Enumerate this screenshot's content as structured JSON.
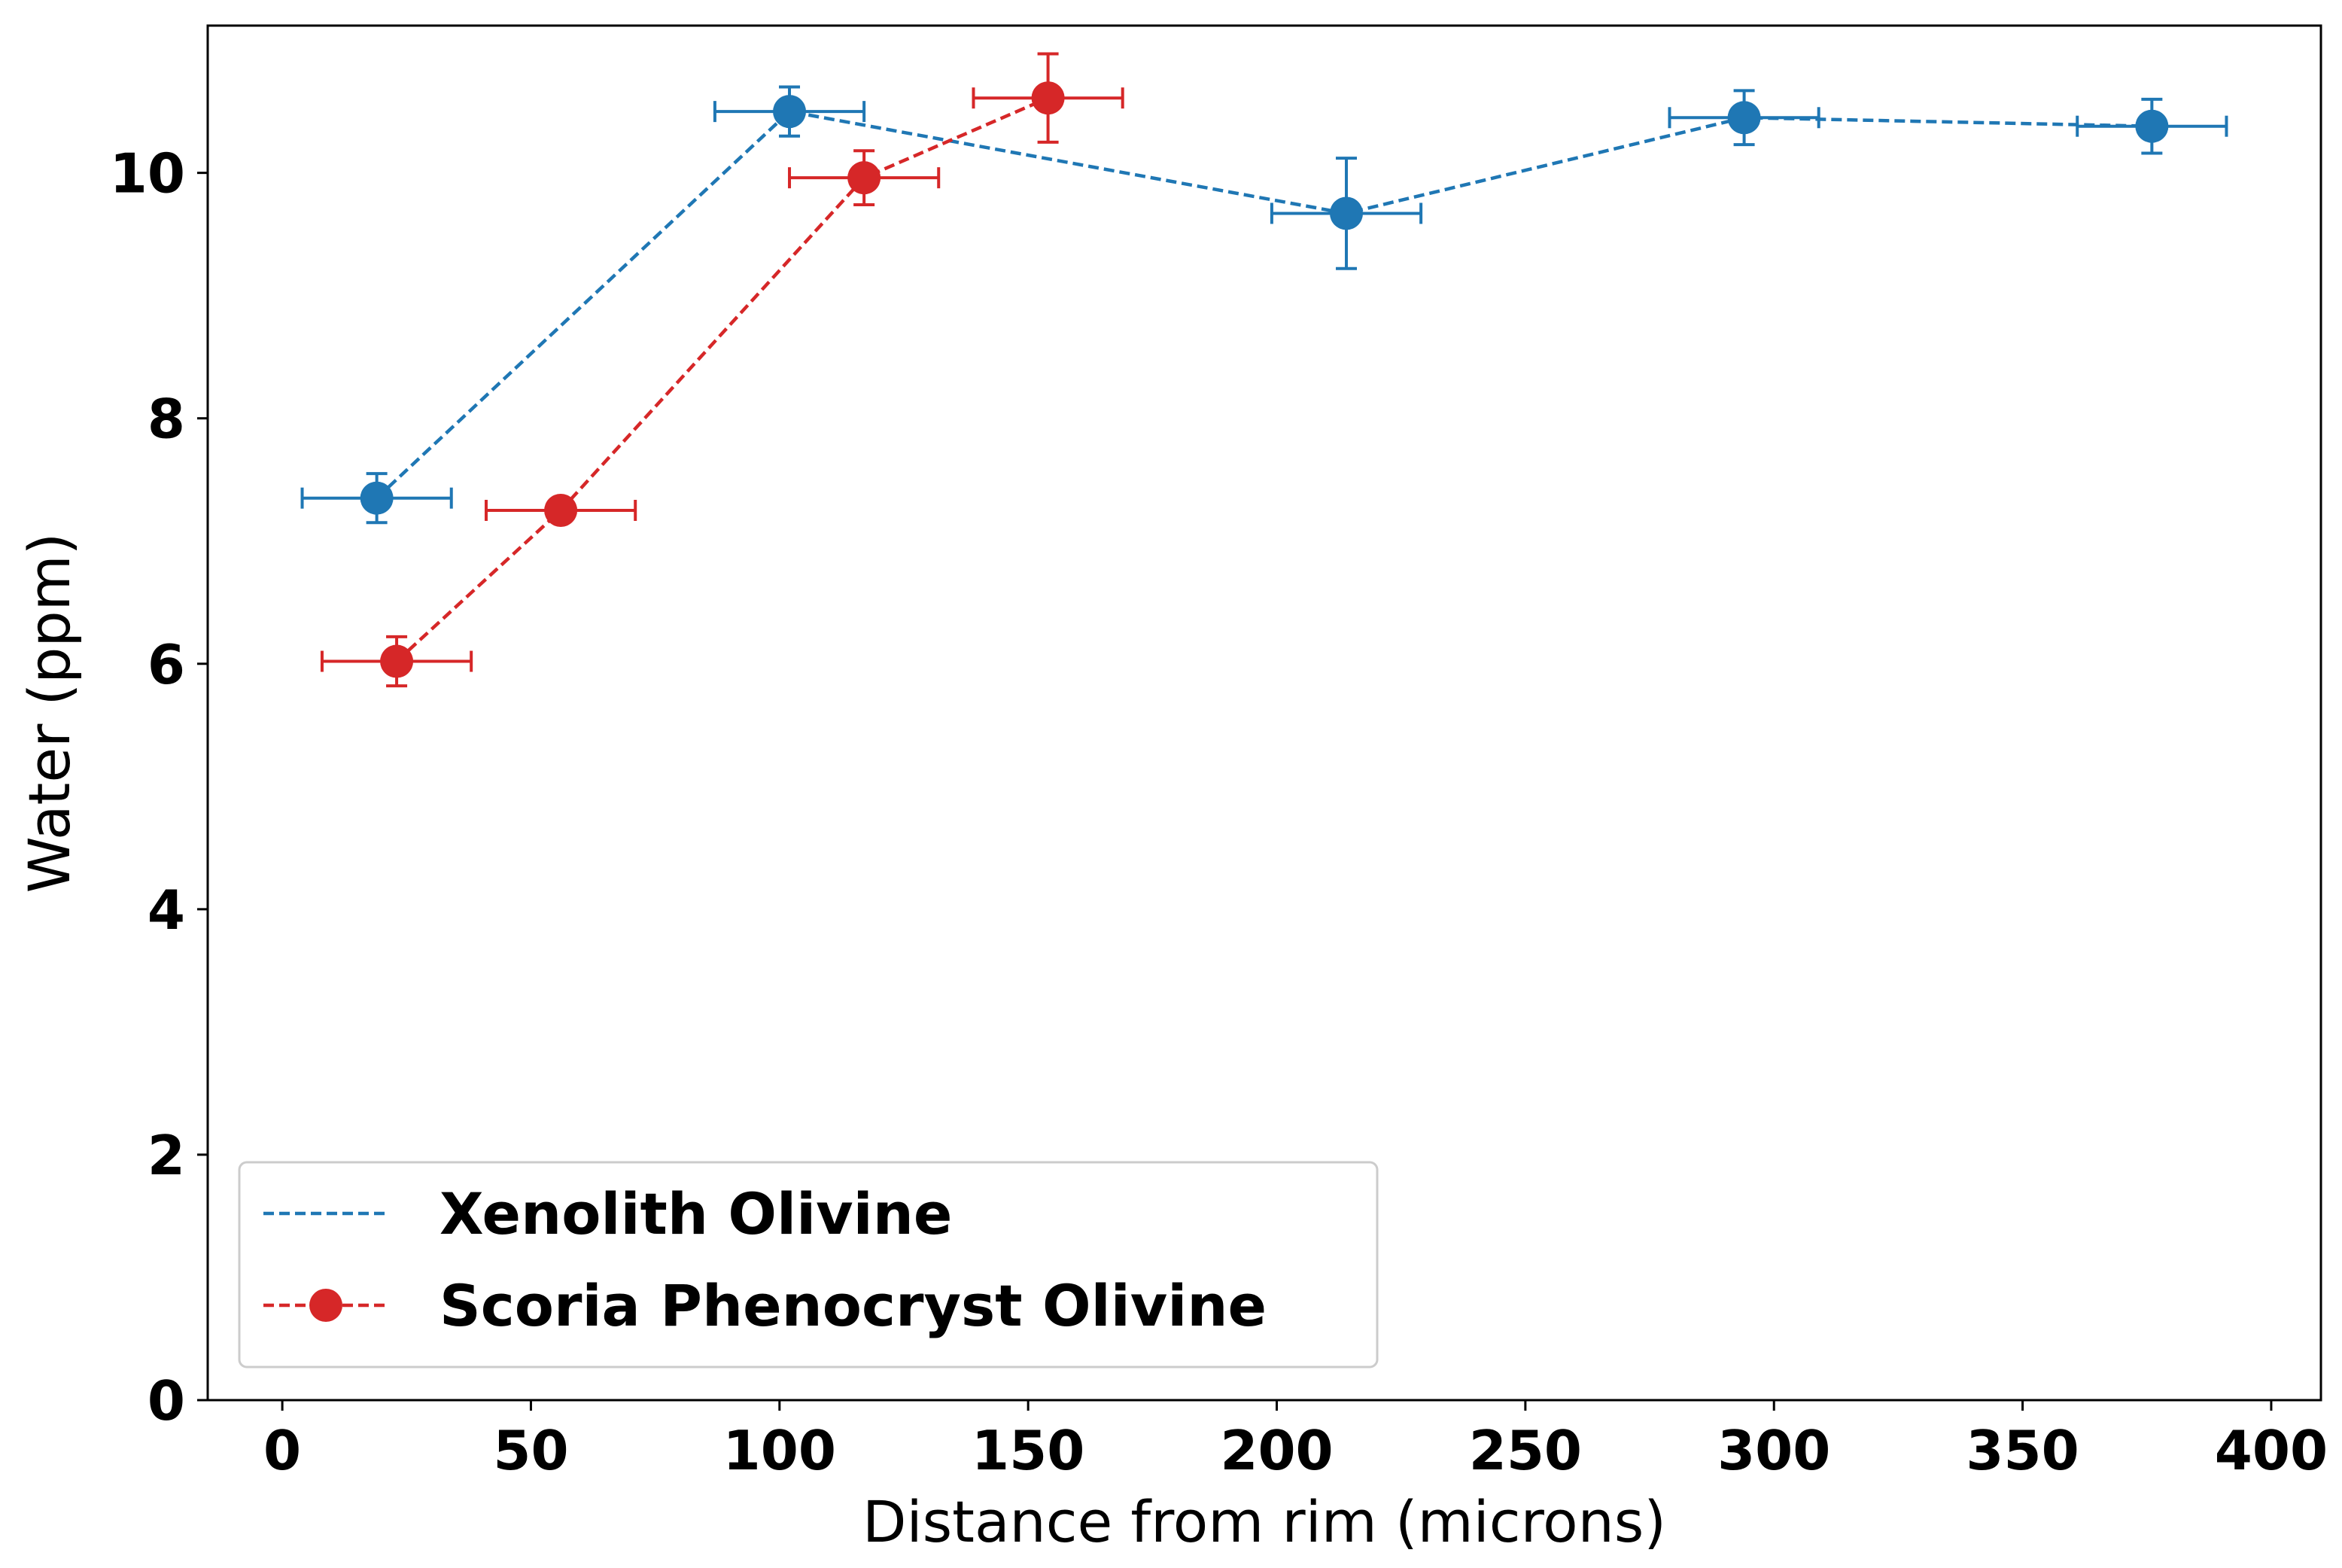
{
  "chart_data": {
    "type": "scatter",
    "xlabel": "Distance from rim (microns)",
    "ylabel": "Water (ppm)",
    "xlim": [
      -15,
      410
    ],
    "ylim": [
      0,
      11.2
    ],
    "xticks": [
      0,
      50,
      100,
      150,
      200,
      250,
      300,
      350,
      400
    ],
    "yticks": [
      0,
      2,
      4,
      6,
      8,
      10
    ],
    "grid": false,
    "legend_position": "lower-left",
    "series": [
      {
        "name": "Xenolith Olivine",
        "color": "#1f77b4",
        "line_style": "dashed",
        "marker": "circle",
        "points": [
          {
            "x": 19,
            "y": 7.35,
            "xerr": 15,
            "yerr": 0.2
          },
          {
            "x": 102,
            "y": 10.5,
            "xerr": 15,
            "yerr": 0.2
          },
          {
            "x": 214,
            "y": 9.67,
            "xerr": 15,
            "yerr": 0.45
          },
          {
            "x": 294,
            "y": 10.45,
            "xerr": 15,
            "yerr": 0.22
          },
          {
            "x": 376,
            "y": 10.38,
            "xerr": 15,
            "yerr": 0.22
          }
        ]
      },
      {
        "name": "Scoria Phenocryst Olivine",
        "color": "#d62728",
        "line_style": "dashed",
        "marker": "circle",
        "points": [
          {
            "x": 23,
            "y": 6.02,
            "xerr": 15,
            "yerr": 0.2
          },
          {
            "x": 56,
            "y": 7.25,
            "xerr": 15,
            "yerr": 0.02
          },
          {
            "x": 117,
            "y": 9.96,
            "xerr": 15,
            "yerr": 0.22
          },
          {
            "x": 154,
            "y": 10.61,
            "xerr": 15,
            "yerr": 0.36
          }
        ]
      }
    ]
  }
}
